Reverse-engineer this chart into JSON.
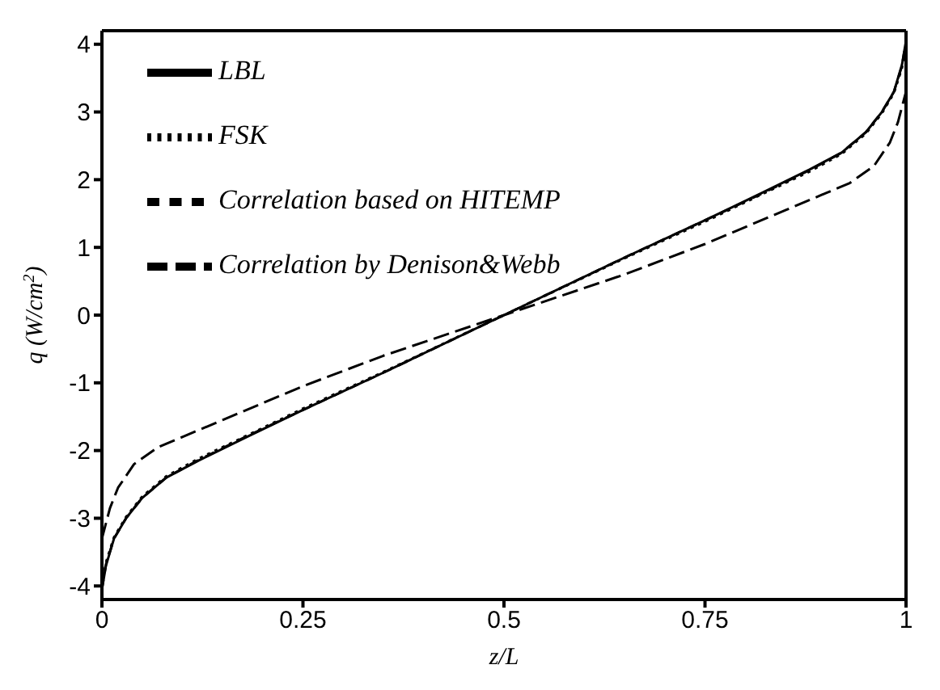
{
  "chart_data": {
    "type": "line",
    "xlabel": "z/L",
    "ylabel": "q (W/cm$^{2}$)",
    "xlim": [
      0,
      1
    ],
    "ylim": [
      -4.2,
      4.2
    ],
    "xticks": [
      0,
      0.25,
      0.5,
      0.75,
      1
    ],
    "yticks": [
      -4,
      -3,
      -2,
      -1,
      0,
      1,
      2,
      3,
      4
    ],
    "legend": "top left",
    "grid": false,
    "marker": "none",
    "series": [
      {
        "name": "LBL",
        "color": "#000000",
        "line_style": "solid",
        "x": [
          0,
          0.005,
          0.015,
          0.03,
          0.05,
          0.08,
          0.12,
          0.18,
          0.25,
          0.35,
          0.5,
          0.65,
          0.75,
          0.82,
          0.88,
          0.92,
          0.95,
          0.97,
          0.985,
          0.995,
          1
        ],
        "values": [
          -4.05,
          -3.7,
          -3.3,
          -3.0,
          -2.7,
          -2.4,
          -2.15,
          -1.8,
          -1.4,
          -0.85,
          0,
          0.85,
          1.4,
          1.8,
          2.15,
          2.4,
          2.7,
          3.0,
          3.3,
          3.7,
          4.05
        ]
      },
      {
        "name": "FSK",
        "color": "#000000",
        "line_style": "dotted",
        "x": [
          0,
          0.005,
          0.015,
          0.03,
          0.05,
          0.08,
          0.12,
          0.18,
          0.25,
          0.35,
          0.5,
          0.65,
          0.75,
          0.82,
          0.88,
          0.92,
          0.95,
          0.97,
          0.985,
          0.995,
          1
        ],
        "values": [
          -4.0,
          -3.65,
          -3.28,
          -2.98,
          -2.68,
          -2.38,
          -2.12,
          -1.78,
          -1.38,
          -0.84,
          0,
          0.84,
          1.38,
          1.78,
          2.12,
          2.38,
          2.68,
          2.98,
          3.28,
          3.65,
          4.0
        ]
      },
      {
        "name": "Correlation based on HITEMP",
        "color": "#000000",
        "line_style": "dashed",
        "x": [
          0,
          0.005,
          0.015,
          0.03,
          0.05,
          0.08,
          0.12,
          0.18,
          0.25,
          0.35,
          0.5,
          0.65,
          0.75,
          0.82,
          0.88,
          0.92,
          0.95,
          0.97,
          0.985,
          0.995,
          1
        ],
        "values": [
          -4.05,
          -3.68,
          -3.3,
          -3.0,
          -2.7,
          -2.4,
          -2.14,
          -1.79,
          -1.4,
          -0.85,
          0,
          0.85,
          1.4,
          1.79,
          2.14,
          2.4,
          2.7,
          3.0,
          3.3,
          3.68,
          4.05
        ]
      },
      {
        "name": "Correlation by Denison&Webb",
        "color": "#000000",
        "line_style": "dashed",
        "x": [
          0,
          0.01,
          0.02,
          0.04,
          0.07,
          0.1,
          0.15,
          0.2,
          0.25,
          0.35,
          0.5,
          0.65,
          0.75,
          0.8,
          0.85,
          0.9,
          0.93,
          0.96,
          0.98,
          0.99,
          1
        ],
        "values": [
          -3.3,
          -2.85,
          -2.55,
          -2.2,
          -1.95,
          -1.8,
          -1.55,
          -1.3,
          -1.05,
          -0.6,
          0,
          0.6,
          1.05,
          1.3,
          1.55,
          1.8,
          1.95,
          2.2,
          2.55,
          2.85,
          3.3
        ]
      }
    ]
  }
}
